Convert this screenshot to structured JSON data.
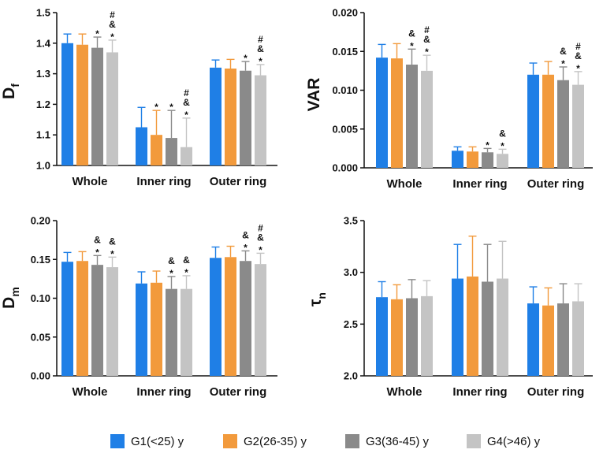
{
  "legend": [
    {
      "label": "G1(<25) y",
      "color": "#1f7fe6"
    },
    {
      "label": "G2(26-35) y",
      "color": "#f29a3c"
    },
    {
      "label": "G3(36-45) y",
      "color": "#8a8a8a"
    },
    {
      "label": "G4(>46) y",
      "color": "#c4c4c4"
    }
  ],
  "chart_data": [
    {
      "type": "bar",
      "ylabel": "D",
      "ylabel_sub": "f",
      "ylim": [
        1.0,
        1.5
      ],
      "yticks": [
        "1.0",
        "1.1",
        "1.2",
        "1.3",
        "1.4",
        "1.5"
      ],
      "categories": [
        "Whole",
        "Inner ring",
        "Outer ring"
      ],
      "series": [
        {
          "name": "G1(<25) y",
          "values": [
            1.4,
            1.125,
            1.32
          ],
          "errors": [
            0.03,
            0.065,
            0.025
          ]
        },
        {
          "name": "G2(26-35) y",
          "values": [
            1.395,
            1.1,
            1.317
          ],
          "errors": [
            0.035,
            0.08,
            0.03
          ]
        },
        {
          "name": "G3(36-45) y",
          "values": [
            1.385,
            1.09,
            1.31
          ],
          "errors": [
            0.035,
            0.09,
            0.03
          ]
        },
        {
          "name": "G4(>46) y",
          "values": [
            1.37,
            1.06,
            1.295
          ],
          "errors": [
            0.04,
            0.095,
            0.035
          ]
        }
      ],
      "annotations": [
        [
          "",
          "",
          "*",
          "*&#"
        ],
        [
          "",
          "*",
          "*",
          "*&#"
        ],
        [
          "",
          "",
          "*",
          "*&#"
        ]
      ]
    },
    {
      "type": "bar",
      "ylabel": "VAR",
      "ylabel_sub": "",
      "ylim": [
        0.0,
        0.02
      ],
      "yticks": [
        "0.000",
        "0.005",
        "0.010",
        "0.015",
        "0.020"
      ],
      "categories": [
        "Whole",
        "Inner ring",
        "Outer ring"
      ],
      "series": [
        {
          "name": "G1(<25) y",
          "values": [
            0.0142,
            0.0022,
            0.012
          ],
          "errors": [
            0.0017,
            0.0005,
            0.0015
          ]
        },
        {
          "name": "G2(26-35) y",
          "values": [
            0.0141,
            0.0021,
            0.012
          ],
          "errors": [
            0.0019,
            0.0006,
            0.0017
          ]
        },
        {
          "name": "G3(36-45) y",
          "values": [
            0.0133,
            0.002,
            0.0113
          ],
          "errors": [
            0.002,
            0.0005,
            0.0017
          ]
        },
        {
          "name": "G4(>46) y",
          "values": [
            0.0125,
            0.0018,
            0.0107
          ],
          "errors": [
            0.002,
            0.0006,
            0.0017
          ]
        }
      ],
      "annotations": [
        [
          "",
          "",
          "*&",
          "*&#"
        ],
        [
          "",
          "",
          "*",
          "*&"
        ],
        [
          "",
          "",
          "*&",
          "*&#"
        ]
      ]
    },
    {
      "type": "bar",
      "ylabel": "D",
      "ylabel_sub": "m",
      "ylim": [
        0.0,
        0.2
      ],
      "yticks": [
        "0.00",
        "0.05",
        "0.10",
        "0.15",
        "0.20"
      ],
      "categories": [
        "Whole",
        "Inner ring",
        "Outer ring"
      ],
      "series": [
        {
          "name": "G1(<25) y",
          "values": [
            0.147,
            0.119,
            0.152
          ],
          "errors": [
            0.012,
            0.015,
            0.014
          ]
        },
        {
          "name": "G2(26-35) y",
          "values": [
            0.148,
            0.12,
            0.153
          ],
          "errors": [
            0.012,
            0.015,
            0.014
          ]
        },
        {
          "name": "G3(36-45) y",
          "values": [
            0.143,
            0.112,
            0.148
          ],
          "errors": [
            0.012,
            0.016,
            0.013
          ]
        },
        {
          "name": "G4(>46) y",
          "values": [
            0.14,
            0.112,
            0.144
          ],
          "errors": [
            0.013,
            0.017,
            0.014
          ]
        }
      ],
      "annotations": [
        [
          "",
          "",
          "*&",
          "*&"
        ],
        [
          "",
          "",
          "*&",
          "*&"
        ],
        [
          "",
          "",
          "*&",
          "*&#"
        ]
      ]
    },
    {
      "type": "bar",
      "ylabel": "τ",
      "ylabel_sub": "n",
      "ylim": [
        2.0,
        3.5
      ],
      "yticks": [
        "2.0",
        "2.5",
        "3.0",
        "3.5"
      ],
      "categories": [
        "Whole",
        "Inner ring",
        "Outer ring"
      ],
      "series": [
        {
          "name": "G1(<25) y",
          "values": [
            2.76,
            2.94,
            2.7
          ],
          "errors": [
            0.15,
            0.33,
            0.16
          ]
        },
        {
          "name": "G2(26-35) y",
          "values": [
            2.74,
            2.96,
            2.68
          ],
          "errors": [
            0.14,
            0.39,
            0.17
          ]
        },
        {
          "name": "G3(36-45) y",
          "values": [
            2.75,
            2.91,
            2.7
          ],
          "errors": [
            0.18,
            0.36,
            0.19
          ]
        },
        {
          "name": "G4(>46) y",
          "values": [
            2.77,
            2.94,
            2.72
          ],
          "errors": [
            0.15,
            0.36,
            0.17
          ]
        }
      ],
      "annotations": [
        [
          "",
          "",
          "",
          ""
        ],
        [
          "",
          "",
          "",
          ""
        ],
        [
          "",
          "",
          "",
          ""
        ]
      ]
    }
  ]
}
